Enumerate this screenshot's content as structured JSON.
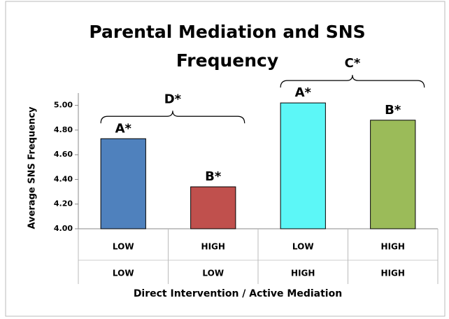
{
  "chart_data": {
    "type": "bar",
    "title_lines": [
      "Parental Mediation and SNS",
      "Frequency"
    ],
    "y_label": "Average SNS Frequency",
    "x_label": "Direct Intervention / Active Mediation",
    "categories": [
      [
        "LOW",
        "LOW"
      ],
      [
        "HIGH",
        "LOW"
      ],
      [
        "LOW",
        "HIGH"
      ],
      [
        "HIGH",
        "HIGH"
      ]
    ],
    "values": [
      4.73,
      4.34,
      5.02,
      4.88
    ],
    "colors": [
      "#4f81bd",
      "#c0504d",
      "#5cf7f7",
      "#9bbb59"
    ],
    "bar_labels": [
      "A*",
      "B*",
      "A*",
      "B*"
    ],
    "brace_labels": [
      "D*",
      "C*"
    ],
    "ylim": [
      4,
      5.1
    ],
    "yticks": [
      {
        "value": 4,
        "label": "4.00"
      },
      {
        "value": 4.2,
        "label": "4.20"
      },
      {
        "value": 4.4,
        "label": "4.40"
      },
      {
        "value": 4.6,
        "label": "4.60"
      },
      {
        "value": 4.8,
        "label": "4.80"
      },
      {
        "value": 5,
        "label": "5.00"
      }
    ],
    "grid": false
  }
}
